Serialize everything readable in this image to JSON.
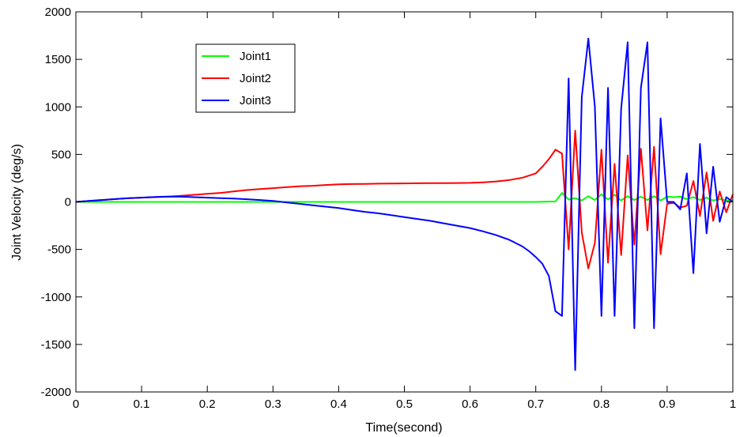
{
  "chart_data": {
    "type": "line",
    "title": "",
    "xlabel": "Time(second)",
    "ylabel": "Joint Velocity (deg/s)",
    "xlim": [
      0,
      1
    ],
    "ylim": [
      -2000,
      2000
    ],
    "xticks": [
      0,
      0.1,
      0.2,
      0.3,
      0.4,
      0.5,
      0.6,
      0.7,
      0.8,
      0.9,
      1
    ],
    "xtick_labels": [
      "0",
      "0.1",
      "0.2",
      "0.3",
      "0.4",
      "0.5",
      "0.6",
      "0.7",
      "0.8",
      "0.9",
      "1"
    ],
    "yticks": [
      -2000,
      -1500,
      -1000,
      -500,
      0,
      500,
      1000,
      1500,
      2000
    ],
    "ytick_labels": [
      "-2000",
      "-1500",
      "-1000",
      "-500",
      "0",
      "500",
      "1000",
      "1500",
      "2000"
    ],
    "grid": false,
    "legend_position": "top-left",
    "series": [
      {
        "name": "Joint1",
        "color": "#00ff00",
        "x": [
          0,
          0.1,
          0.2,
          0.3,
          0.4,
          0.5,
          0.6,
          0.7,
          0.73,
          0.74,
          0.75,
          0.76,
          0.77,
          0.78,
          0.79,
          0.8,
          0.81,
          0.82,
          0.83,
          0.84,
          0.85,
          0.86,
          0.87,
          0.88,
          0.89,
          0.9,
          0.91,
          0.92,
          0.93,
          0.94,
          0.95,
          0.96,
          0.97,
          0.98,
          0.99,
          1.0
        ],
        "values": [
          0,
          0,
          0,
          0,
          0,
          0,
          0,
          0,
          5,
          95,
          25,
          40,
          15,
          60,
          20,
          80,
          25,
          75,
          15,
          60,
          20,
          55,
          20,
          60,
          15,
          55,
          50,
          55,
          30,
          50,
          20,
          45,
          15,
          30,
          15,
          10
        ]
      },
      {
        "name": "Joint2",
        "color": "#ff0000",
        "x": [
          0,
          0.02,
          0.04,
          0.06,
          0.08,
          0.1,
          0.12,
          0.14,
          0.16,
          0.18,
          0.2,
          0.22,
          0.24,
          0.26,
          0.28,
          0.3,
          0.32,
          0.34,
          0.36,
          0.38,
          0.4,
          0.42,
          0.44,
          0.46,
          0.48,
          0.5,
          0.52,
          0.54,
          0.56,
          0.58,
          0.6,
          0.62,
          0.64,
          0.66,
          0.68,
          0.7,
          0.71,
          0.72,
          0.73,
          0.74,
          0.75,
          0.76,
          0.77,
          0.78,
          0.79,
          0.8,
          0.81,
          0.82,
          0.83,
          0.84,
          0.85,
          0.86,
          0.87,
          0.88,
          0.89,
          0.9,
          0.91,
          0.92,
          0.93,
          0.94,
          0.95,
          0.96,
          0.97,
          0.98,
          0.99,
          1.0
        ],
        "values": [
          0,
          10,
          20,
          30,
          38,
          45,
          50,
          55,
          65,
          75,
          85,
          95,
          110,
          125,
          135,
          145,
          155,
          165,
          170,
          178,
          185,
          188,
          190,
          192,
          193,
          195,
          196,
          197,
          198,
          199,
          200,
          205,
          215,
          230,
          255,
          300,
          370,
          450,
          550,
          510,
          -500,
          750,
          -320,
          -700,
          -430,
          550,
          -640,
          400,
          -560,
          490,
          -450,
          560,
          -300,
          580,
          -550,
          -20,
          -10,
          -60,
          -40,
          220,
          -150,
          310,
          -200,
          110,
          -110,
          80
        ]
      },
      {
        "name": "Joint3",
        "color": "#0000ff",
        "x": [
          0,
          0.02,
          0.04,
          0.06,
          0.08,
          0.1,
          0.12,
          0.14,
          0.16,
          0.18,
          0.2,
          0.22,
          0.24,
          0.26,
          0.28,
          0.3,
          0.32,
          0.34,
          0.36,
          0.38,
          0.4,
          0.42,
          0.44,
          0.46,
          0.48,
          0.5,
          0.52,
          0.54,
          0.56,
          0.58,
          0.6,
          0.62,
          0.64,
          0.66,
          0.68,
          0.69,
          0.7,
          0.71,
          0.72,
          0.73,
          0.74,
          0.75,
          0.76,
          0.77,
          0.78,
          0.79,
          0.8,
          0.81,
          0.82,
          0.83,
          0.84,
          0.85,
          0.86,
          0.87,
          0.88,
          0.89,
          0.9,
          0.91,
          0.92,
          0.93,
          0.94,
          0.95,
          0.96,
          0.97,
          0.98,
          0.99,
          1.0
        ],
        "values": [
          0,
          10,
          20,
          30,
          40,
          45,
          52,
          56,
          55,
          50,
          45,
          40,
          35,
          28,
          20,
          10,
          -5,
          -20,
          -35,
          -50,
          -65,
          -85,
          -105,
          -120,
          -140,
          -160,
          -180,
          -200,
          -225,
          -250,
          -275,
          -310,
          -350,
          -400,
          -470,
          -520,
          -580,
          -650,
          -780,
          -1150,
          -1200,
          1300,
          -1770,
          1100,
          1720,
          1000,
          -1200,
          1200,
          -1200,
          980,
          1680,
          -1330,
          1200,
          1680,
          -1330,
          880,
          0,
          0,
          -80,
          300,
          -750,
          610,
          -330,
          370,
          -210,
          50,
          0
        ]
      }
    ]
  }
}
